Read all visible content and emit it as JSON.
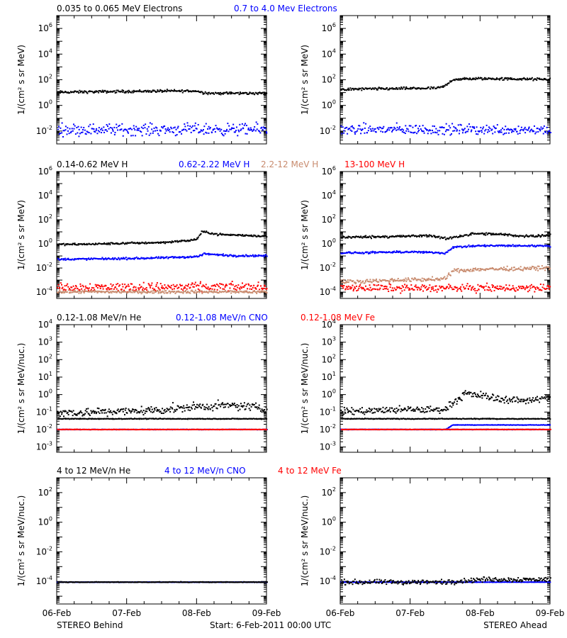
{
  "colors": {
    "black": "#000000",
    "blue": "#0000ff",
    "tan": "#c88b6e",
    "red": "#ff0000"
  },
  "footer": {
    "left": "STEREO Behind",
    "center": "Start:  6-Feb-2011 00:00 UTC",
    "right": "STEREO Ahead"
  },
  "chart_data": [
    {
      "type": "scatter",
      "yscale": "log",
      "ylabel": "1/(cm² s sr MeV)",
      "ylim": [
        0.001,
        10000000
      ],
      "ytick_exponents": [
        -2,
        0,
        2,
        4,
        6
      ],
      "xlim": [
        0,
        3
      ],
      "xticks": [
        "06-Feb",
        "07-Feb",
        "08-Feb",
        "09-Feb"
      ],
      "legend": [
        {
          "text": "0.035 to 0.065 MeV Electrons",
          "color": "black"
        },
        {
          "text": "0.7 to 4.0 Mev Electrons",
          "color": "blue"
        }
      ],
      "panels": [
        {
          "name": "STEREO Behind",
          "series": [
            {
              "color": "black",
              "x": [
                0,
                0.5,
                1.0,
                1.5,
                2.0,
                2.05,
                2.2,
                2.5,
                3.0
              ],
              "y": [
                12,
                13,
                14,
                15,
                15,
                12,
                10,
                10,
                10
              ],
              "scatter": 0.05
            },
            {
              "color": "blue",
              "x": [
                0,
                3
              ],
              "y": [
                0.015,
                0.015
              ],
              "scatter": 0.22
            }
          ]
        },
        {
          "name": "STEREO Ahead",
          "series": [
            {
              "color": "black",
              "x": [
                0,
                0.5,
                1.0,
                1.4,
                1.5,
                1.6,
                2.0,
                2.5,
                3.0
              ],
              "y": [
                20,
                22,
                24,
                25,
                40,
                120,
                140,
                130,
                120
              ],
              "scatter": 0.05
            },
            {
              "color": "blue",
              "x": [
                0,
                3
              ],
              "y": [
                0.015,
                0.015
              ],
              "scatter": 0.2
            }
          ]
        }
      ]
    },
    {
      "type": "scatter",
      "yscale": "log",
      "ylabel": "1/(cm² s sr MeV)",
      "ylim": [
        3e-05,
        1000000
      ],
      "ytick_exponents": [
        -4,
        -2,
        0,
        2,
        4,
        6
      ],
      "xlim": [
        0,
        3
      ],
      "xticks": [
        "06-Feb",
        "07-Feb",
        "08-Feb",
        "09-Feb"
      ],
      "legend": [
        {
          "text": "0.14-0.62 MeV H",
          "color": "black"
        },
        {
          "text": "0.62-2.22 MeV H",
          "color": "blue"
        },
        {
          "text": "2.2-12 MeV H",
          "color": "tan"
        },
        {
          "text": "13-100 MeV H",
          "color": "red"
        }
      ],
      "panels": [
        {
          "name": "STEREO Behind",
          "series": [
            {
              "color": "black",
              "x": [
                0,
                0.5,
                1.0,
                1.5,
                1.9,
                2.0,
                2.07,
                2.3,
                2.6,
                3.0
              ],
              "y": [
                1.0,
                1.1,
                1.3,
                1.5,
                2.2,
                3.0,
                12,
                7,
                6,
                5
              ],
              "scatter": 0.04
            },
            {
              "color": "blue",
              "x": [
                0,
                0.5,
                1.0,
                1.5,
                2.0,
                2.1,
                2.5,
                3.0
              ],
              "y": [
                0.06,
                0.065,
                0.07,
                0.08,
                0.1,
                0.17,
                0.12,
                0.12
              ],
              "scatter": 0.04
            },
            {
              "color": "red",
              "x": [
                0,
                3
              ],
              "y": [
                0.0003,
                0.0003
              ],
              "scatter": 0.18
            },
            {
              "color": "tan",
              "x": [
                0,
                3
              ],
              "y": [
                0.00012,
                0.00012
              ],
              "scatter": 0.06
            }
          ]
        },
        {
          "name": "STEREO Ahead",
          "series": [
            {
              "color": "black",
              "x": [
                0,
                0.5,
                1.0,
                1.3,
                1.5,
                1.6,
                1.9,
                2.3,
                2.6,
                3.0
              ],
              "y": [
                4,
                4.5,
                5,
                5.5,
                3,
                4,
                8,
                7,
                5,
                6
              ],
              "scatter": 0.05
            },
            {
              "color": "blue",
              "x": [
                0,
                0.5,
                1.0,
                1.5,
                1.6,
                2.0,
                2.5,
                3.0
              ],
              "y": [
                0.2,
                0.22,
                0.25,
                0.2,
                0.6,
                0.8,
                0.8,
                0.8
              ],
              "scatter": 0.04
            },
            {
              "color": "tan",
              "x": [
                0,
                0.5,
                1.0,
                1.5,
                1.6,
                2.0,
                2.5,
                3.0
              ],
              "y": [
                0.0008,
                0.001,
                0.0012,
                0.0014,
                0.007,
                0.009,
                0.01,
                0.012
              ],
              "scatter": 0.08
            },
            {
              "color": "red",
              "x": [
                0,
                3
              ],
              "y": [
                0.00025,
                0.00025
              ],
              "scatter": 0.15
            }
          ]
        }
      ]
    },
    {
      "type": "scatter",
      "yscale": "log",
      "ylabel": "1/(cm² s sr MeV/nuc.)",
      "ylim": [
        0.0005,
        10000
      ],
      "ytick_exponents": [
        -3,
        -2,
        -1,
        0,
        1,
        2,
        3,
        4
      ],
      "xlim": [
        0,
        3
      ],
      "xticks": [
        "06-Feb",
        "07-Feb",
        "08-Feb",
        "09-Feb"
      ],
      "legend": [
        {
          "text": "0.12-1.08 MeV/n He",
          "color": "black"
        },
        {
          "text": "0.12-1.08 MeV/n CNO",
          "color": "blue"
        },
        {
          "text": "0.12-1.08 MeV Fe",
          "color": "red"
        }
      ],
      "panels": [
        {
          "name": "STEREO Behind",
          "series": [
            {
              "color": "black",
              "x": [
                0,
                1.5,
                2.0,
                2.5,
                3.0
              ],
              "y": [
                0.045,
                0.045,
                0.045,
                0.045,
                0.045
              ],
              "scatter": 0.01
            },
            {
              "color": "black",
              "x": [
                0,
                1.0,
                1.5,
                2.0,
                2.5,
                3.0
              ],
              "y": [
                0.1,
                0.12,
                0.15,
                0.22,
                0.25,
                0.2
              ],
              "scatter": 0.12
            },
            {
              "color": "blue",
              "x": [
                0,
                3
              ],
              "y": [
                0.011,
                0.011
              ],
              "scatter": 0.005
            },
            {
              "color": "red",
              "x": [
                0,
                3
              ],
              "y": [
                0.011,
                0.011
              ],
              "scatter": 0.005
            }
          ]
        },
        {
          "name": "STEREO Ahead",
          "series": [
            {
              "color": "black",
              "x": [
                0,
                1.5
              ],
              "y": [
                0.045,
                0.045
              ],
              "scatter": 0.01
            },
            {
              "color": "black",
              "x": [
                0,
                1.0,
                1.5,
                1.6,
                1.8,
                2.0,
                2.3,
                2.6,
                3.0
              ],
              "y": [
                0.12,
                0.15,
                0.15,
                0.4,
                1.2,
                1.0,
                0.6,
                0.5,
                0.7
              ],
              "scatter": 0.1
            },
            {
              "color": "blue",
              "x": [
                0,
                1.5,
                1.6,
                3.0
              ],
              "y": [
                0.011,
                0.011,
                0.02,
                0.02
              ],
              "scatter": 0.005
            },
            {
              "color": "blue",
              "x": [
                0,
                3
              ],
              "y": [
                0.011,
                0.011
              ],
              "scatter": 0.005
            },
            {
              "color": "red",
              "x": [
                0,
                3
              ],
              "y": [
                0.011,
                0.011
              ],
              "scatter": 0.004
            }
          ]
        }
      ]
    },
    {
      "type": "scatter",
      "yscale": "log",
      "ylabel": "1/(cm² s sr MeV/nuc.)",
      "ylim": [
        3e-06,
        1000
      ],
      "ytick_exponents": [
        -4,
        -2,
        0,
        2
      ],
      "xlim": [
        0,
        3
      ],
      "xticks": [
        "06-Feb",
        "07-Feb",
        "08-Feb",
        "09-Feb"
      ],
      "legend": [
        {
          "text": "4 to 12 MeV/n He",
          "color": "black"
        },
        {
          "text": "4 to 12 MeV/n CNO",
          "color": "blue"
        },
        {
          "text": "4 to 12 MeV Fe",
          "color": "red"
        }
      ],
      "panels": [
        {
          "name": "STEREO Behind",
          "series": [
            {
              "color": "blue",
              "x": [
                0,
                3
              ],
              "y": [
                0.0001,
                0.0001
              ],
              "scatter": 0.005
            },
            {
              "color": "black",
              "x": [
                0,
                3
              ],
              "y": [
                0.0001,
                0.0001
              ],
              "scatter": 0.01
            }
          ]
        },
        {
          "name": "STEREO Ahead",
          "series": [
            {
              "color": "blue",
              "x": [
                0,
                3
              ],
              "y": [
                0.0001,
                0.0001
              ],
              "scatter": 0.005
            },
            {
              "color": "black",
              "x": [
                0,
                1.5,
                2.0,
                2.5,
                3.0
              ],
              "y": [
                0.0001,
                0.0001,
                0.00015,
                0.00015,
                0.00015
              ],
              "scatter": 0.08
            }
          ]
        }
      ]
    }
  ]
}
